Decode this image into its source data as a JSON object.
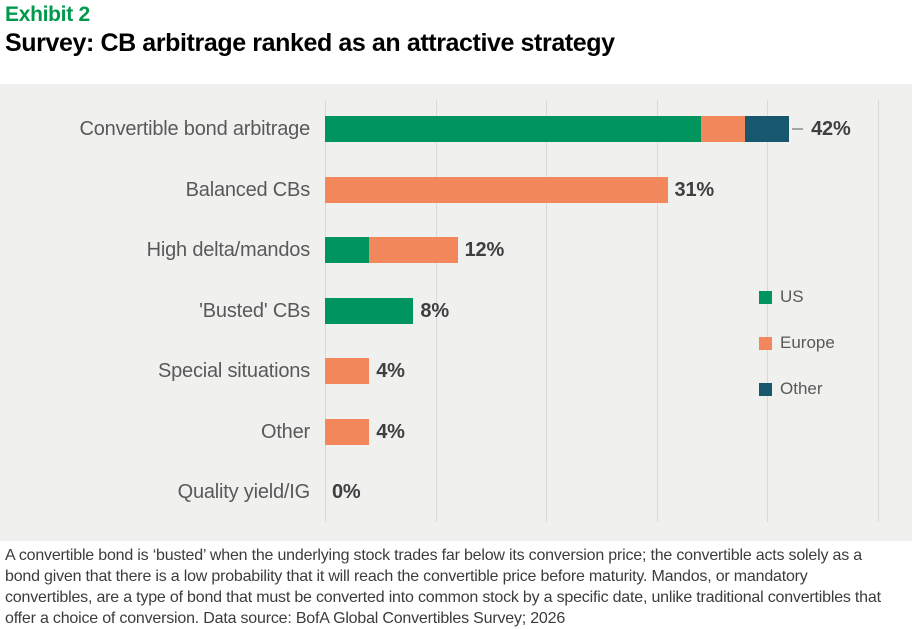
{
  "header": {
    "exhibit_label": "Exhibit 2",
    "title": "Survey: CB arbitrage ranked as an attractive strategy"
  },
  "chart_data": {
    "type": "bar",
    "orientation": "horizontal",
    "stacked": true,
    "title": "Survey: CB arbitrage ranked as an attractive strategy",
    "categories": [
      "Convertible bond arbitrage",
      "Balanced CBs",
      "High delta/mandos",
      "'Busted' CBs",
      "Special situations",
      "Other",
      "Quality yield/IG"
    ],
    "series": [
      {
        "name": "US",
        "color": "#00955F",
        "values": [
          34,
          0,
          4,
          8,
          0,
          0,
          0
        ]
      },
      {
        "name": "Europe",
        "color": "#F2875C",
        "values": [
          4,
          31,
          8,
          0,
          4,
          4,
          0
        ]
      },
      {
        "name": "Other",
        "color": "#17586E",
        "values": [
          4,
          0,
          0,
          0,
          0,
          0,
          0
        ]
      }
    ],
    "totals": [
      42,
      31,
      12,
      8,
      4,
      4,
      0
    ],
    "total_labels": [
      "42%",
      "31%",
      "12%",
      "8%",
      "4%",
      "4%",
      "0%"
    ],
    "xlim": [
      0,
      53
    ],
    "x_gridlines_pct": [
      0,
      10,
      20,
      30,
      40,
      50
    ],
    "grid": true,
    "legend_position": "right",
    "legend": [
      "US",
      "Europe",
      "Other"
    ],
    "callout_dash_category_index": 0,
    "plot_background": "#F0F0EF",
    "gridline_color": "#D9D9D9"
  },
  "footnote": "A convertible bond is ‘busted’ when the underlying stock trades far below its conversion price; the convertible acts solely as a bond given that there is a low probability that it will reach the convertible price before maturity. Mandos, or mandatory convertibles, are a type of bond that must be converted into common stock by a specific date, unlike traditional convertibles that offer a choice of conversion. Data source: BofA Global Convertibles Survey; 2026"
}
